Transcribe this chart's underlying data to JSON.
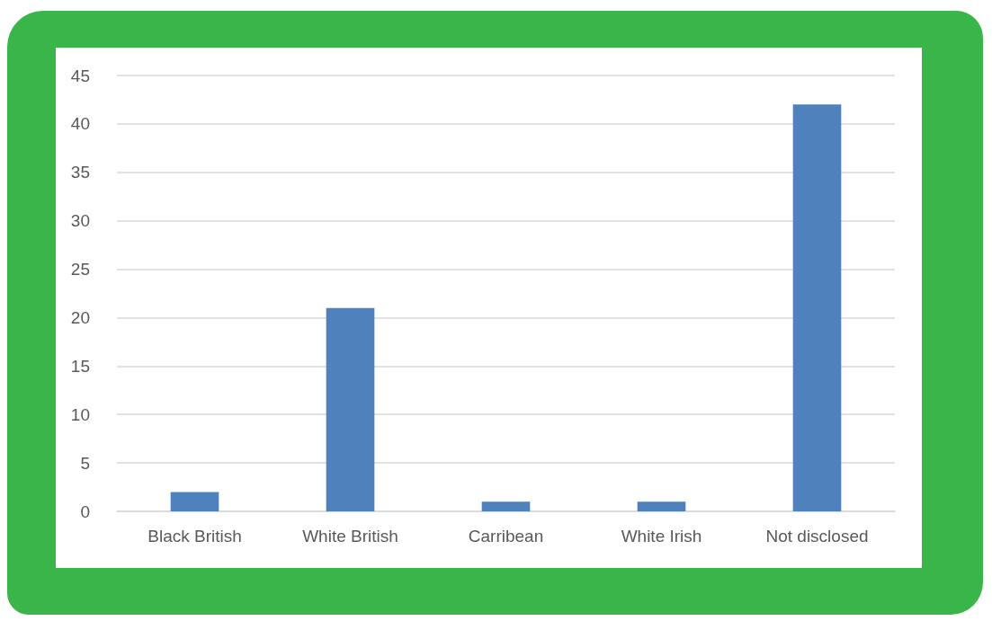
{
  "chart_data": {
    "type": "bar",
    "categories": [
      "Black British",
      "White British",
      "Carribean",
      "White Irish",
      "Not disclosed"
    ],
    "values": [
      2,
      21,
      1,
      1,
      42
    ],
    "color": "#4f81bd",
    "ylim": [
      0,
      45
    ],
    "yticks": [
      0,
      5,
      10,
      15,
      20,
      25,
      30,
      35,
      40,
      45
    ],
    "grid": "y"
  }
}
